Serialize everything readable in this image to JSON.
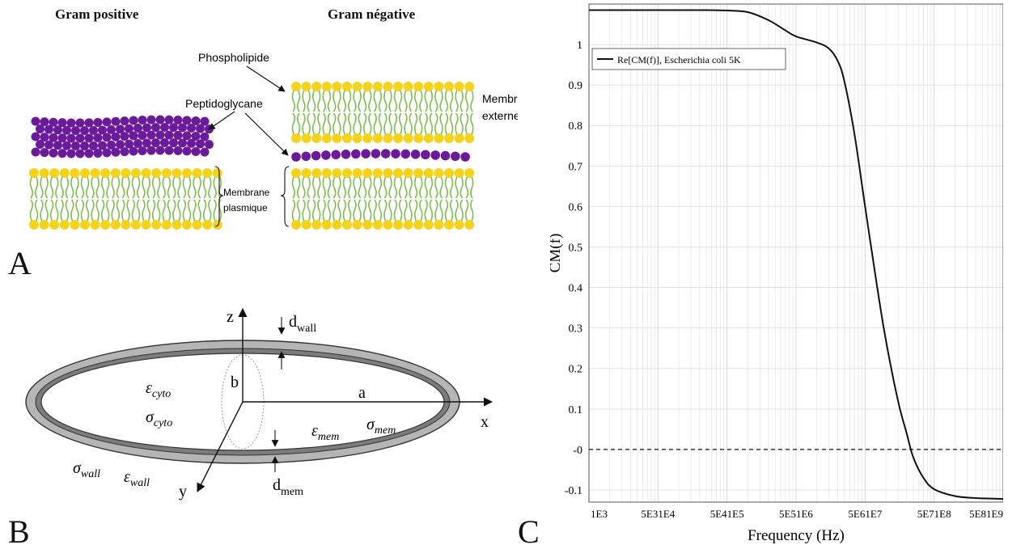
{
  "figure": {
    "panel_a": {
      "letter": "A",
      "gram_positive": "Gram positive",
      "gram_negative": "Gram négative",
      "phospholipide": "Phospholipide",
      "peptidoglycane": "Peptidoglycane",
      "membrane_externe_1": "Membrane",
      "membrane_externe_2": "externe",
      "membrane_plasmique_1": "Membrane",
      "membrane_plasmique_2": "plasmique",
      "colors": {
        "peptidoglycan": "#6a1a9a",
        "head": "#f5d31a",
        "tail": "#7cc04a"
      }
    },
    "panel_b": {
      "letter": "B",
      "axis_x": "x",
      "axis_y": "y",
      "axis_z": "z",
      "label_a": "a",
      "label_b": "b",
      "d": "d",
      "wall_sub": "wall",
      "mem_sub": "mem",
      "eps": "ε",
      "sigma": "σ",
      "cyto_sub": "cyto"
    },
    "panel_c": {
      "letter": "C"
    }
  },
  "chart_data": {
    "type": "line",
    "xlabel": "Frequency (Hz)",
    "ylabel": "CM(f)",
    "x_scale": "log",
    "xlim": [
      1000,
      1000000000
    ],
    "ylim": [
      -0.13,
      1.1
    ],
    "x_tick_labels": [
      "1E3",
      "5E31E4",
      "5E41E5",
      "5E51E6",
      "5E61E7",
      "5E71E8",
      "5E81E9"
    ],
    "y_ticks": [
      1,
      0.9,
      0.8,
      0.7,
      0.6,
      0.5,
      0.4,
      0.3,
      0.2,
      0.1,
      0,
      -0.1
    ],
    "y_tick_labels": [
      "1",
      "0.9",
      "0.8",
      "0.7",
      "0.6",
      "0.5",
      "0.4",
      "0.3",
      "0.2",
      "0.1",
      "-0",
      "-0.1"
    ],
    "grid": true,
    "legend_position": "top-left",
    "series": [
      {
        "name": "Re[CM(f)], Escherichia coli 5K",
        "x": [
          1000,
          10000,
          50000,
          100000,
          200000,
          400000,
          700000,
          1000000,
          2000000,
          3000000,
          4000000,
          5000000,
          7000000,
          10000000,
          15000000,
          20000000,
          30000000,
          40000000,
          50000000,
          70000000,
          100000000,
          200000000,
          400000000,
          1000000000
        ],
        "y": [
          1.085,
          1.085,
          1.085,
          1.084,
          1.08,
          1.06,
          1.035,
          1.02,
          1.005,
          0.99,
          0.96,
          0.91,
          0.78,
          0.6,
          0.4,
          0.27,
          0.12,
          0.04,
          -0.02,
          -0.07,
          -0.098,
          -0.115,
          -0.12,
          -0.122
        ]
      },
      {
        "name": "",
        "x": [
          1000,
          1000000000
        ],
        "y": [
          0,
          0
        ],
        "style": "dashed"
      }
    ]
  }
}
